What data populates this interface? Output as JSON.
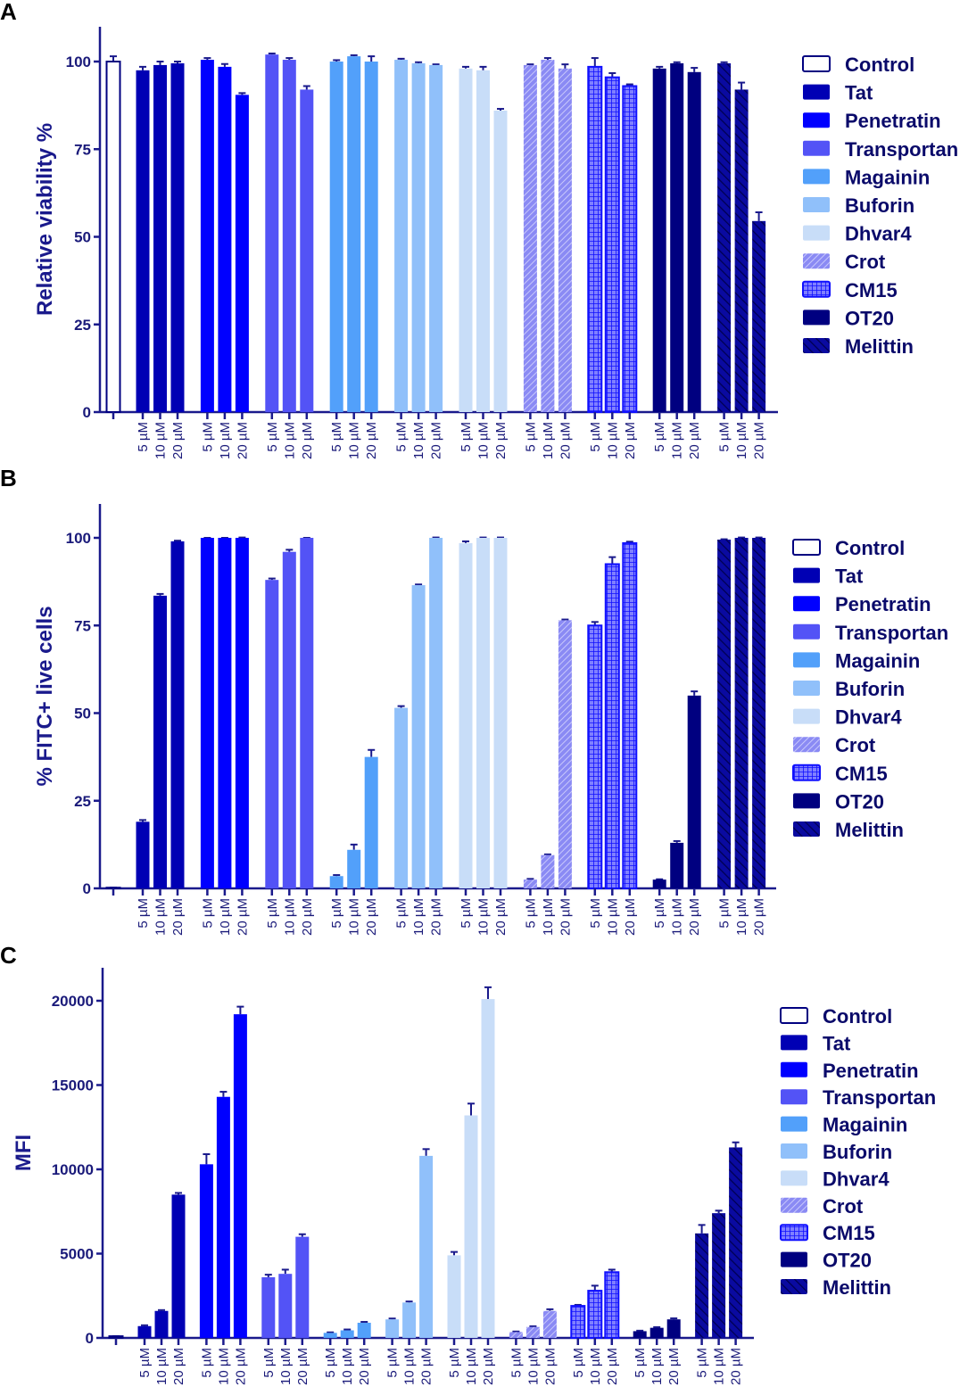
{
  "chart_data": [
    {
      "type": "bar",
      "panel_label": "A",
      "ylabel": "Relative viability %",
      "ylim": [
        0,
        110
      ],
      "yticks": [
        0,
        25,
        50,
        75,
        100
      ],
      "tick_labels": [
        "0",
        "25",
        "50",
        "75",
        "100"
      ],
      "concentrations": [
        "5 µM",
        "10 µM",
        "20 µM"
      ],
      "control": {
        "name": "Control",
        "value": 100,
        "error": 1.5
      },
      "series": [
        {
          "name": "Tat",
          "values": [
            97.5,
            99,
            99.5
          ],
          "errors": [
            1,
            1,
            0.5
          ]
        },
        {
          "name": "Penetratin",
          "values": [
            100.5,
            98.5,
            90.5
          ],
          "errors": [
            0.5,
            0.8,
            0.5
          ]
        },
        {
          "name": "Transportan",
          "values": [
            102,
            100.5,
            92
          ],
          "errors": [
            0.3,
            0.5,
            1
          ]
        },
        {
          "name": "Magainin",
          "values": [
            100,
            101.5,
            100
          ],
          "errors": [
            0.4,
            0.3,
            1.5
          ]
        },
        {
          "name": "Buforin",
          "values": [
            100.5,
            99.5,
            99
          ],
          "errors": [
            0.3,
            0.3,
            0.2
          ]
        },
        {
          "name": "Dhvar4",
          "values": [
            98,
            97.5,
            86
          ],
          "errors": [
            0.5,
            1,
            0.5
          ]
        },
        {
          "name": "Crot",
          "values": [
            99,
            100.5,
            98
          ],
          "errors": [
            0.2,
            0.5,
            1.2
          ]
        },
        {
          "name": "CM15",
          "values": [
            98.5,
            95.5,
            93
          ],
          "errors": [
            2.5,
            1.2,
            0.5
          ]
        },
        {
          "name": "OT20",
          "values": [
            98,
            99.5,
            97
          ],
          "errors": [
            0.5,
            0.3,
            1.2
          ]
        },
        {
          "name": "Melittin",
          "values": [
            99.5,
            92,
            54.5
          ],
          "errors": [
            0.3,
            2,
            2.5
          ]
        }
      ]
    },
    {
      "type": "bar",
      "panel_label": "B",
      "ylabel": "% FITC+ live cells",
      "ylim": [
        0,
        110
      ],
      "yticks": [
        0,
        25,
        50,
        75,
        100
      ],
      "tick_labels": [
        "0",
        "25",
        "50",
        "75",
        "100"
      ],
      "concentrations": [
        "5 µM",
        "10 µM",
        "20 µM"
      ],
      "control": {
        "name": "Control",
        "value": 0.2,
        "error": 0
      },
      "series": [
        {
          "name": "Tat",
          "values": [
            19,
            83.5,
            99
          ],
          "errors": [
            0.5,
            0.5,
            0.2
          ]
        },
        {
          "name": "Penetratin",
          "values": [
            100,
            100,
            100
          ],
          "errors": [
            0,
            0,
            0.1
          ]
        },
        {
          "name": "Transportan",
          "values": [
            88,
            96,
            100
          ],
          "errors": [
            0.4,
            0.6,
            0
          ]
        },
        {
          "name": "Magainin",
          "values": [
            3.5,
            11,
            37.5
          ],
          "errors": [
            0.3,
            1.5,
            2
          ]
        },
        {
          "name": "Buforin",
          "values": [
            51.5,
            86.5,
            100
          ],
          "errors": [
            0.5,
            0.2,
            0.1
          ]
        },
        {
          "name": "Dhvar4",
          "values": [
            98.5,
            100,
            100
          ],
          "errors": [
            0.5,
            0.1,
            0.1
          ]
        },
        {
          "name": "Crot",
          "values": [
            2.5,
            9.5,
            76.5
          ],
          "errors": [
            0.2,
            0.2,
            0.2
          ]
        },
        {
          "name": "CM15",
          "values": [
            75,
            92.5,
            98.5
          ],
          "errors": [
            1,
            2,
            0.4
          ]
        },
        {
          "name": "OT20",
          "values": [
            2.5,
            13,
            55
          ],
          "errors": [
            0.1,
            0.5,
            1.2
          ]
        },
        {
          "name": "Melittin",
          "values": [
            99.5,
            100,
            100
          ],
          "errors": [
            0.1,
            0.1,
            0.1
          ]
        }
      ]
    },
    {
      "type": "bar",
      "panel_label": "C",
      "ylabel": "MFI",
      "ylim": [
        0,
        22000
      ],
      "yticks": [
        0,
        5000,
        10000,
        15000,
        20000
      ],
      "tick_labels": [
        "0",
        "5000",
        "10000",
        "15000",
        "20000"
      ],
      "concentrations": [
        "5 µM",
        "10 µM",
        "20 µM"
      ],
      "control": {
        "name": "Control",
        "value": 100,
        "error": 0
      },
      "series": [
        {
          "name": "Tat",
          "values": [
            700,
            1600,
            8500
          ],
          "errors": [
            50,
            50,
            100
          ]
        },
        {
          "name": "Penetratin",
          "values": [
            10300,
            14300,
            19200
          ],
          "errors": [
            600,
            300,
            450
          ]
        },
        {
          "name": "Transportan",
          "values": [
            3600,
            3800,
            6000
          ],
          "errors": [
            150,
            250,
            150
          ]
        },
        {
          "name": "Magainin",
          "values": [
            300,
            450,
            900
          ],
          "errors": [
            30,
            50,
            50
          ]
        },
        {
          "name": "Buforin",
          "values": [
            1100,
            2100,
            10800
          ],
          "errors": [
            50,
            60,
            400
          ]
        },
        {
          "name": "Dhvar4",
          "values": [
            4900,
            13200,
            20100
          ],
          "errors": [
            200,
            700,
            700
          ]
        },
        {
          "name": "Crot",
          "values": [
            350,
            650,
            1600
          ],
          "errors": [
            30,
            40,
            100
          ]
        },
        {
          "name": "CM15",
          "values": [
            1900,
            2800,
            3900
          ],
          "errors": [
            60,
            300,
            150
          ]
        },
        {
          "name": "OT20",
          "values": [
            400,
            600,
            1100
          ],
          "errors": [
            30,
            40,
            60
          ]
        },
        {
          "name": "Melittin",
          "values": [
            6200,
            7400,
            11300
          ],
          "errors": [
            500,
            150,
            300
          ]
        }
      ]
    }
  ],
  "styles": {
    "axis_color": "#1a1a8c",
    "Control": {
      "fill": "#ffffff",
      "stroke": "#000080",
      "pattern": "none"
    },
    "Tat": {
      "fill": "#0000b4",
      "pattern": "none"
    },
    "Penetratin": {
      "fill": "#0000ff",
      "pattern": "none"
    },
    "Transportan": {
      "fill": "#5353f6",
      "pattern": "none"
    },
    "Magainin": {
      "fill": "#52a0fa",
      "pattern": "none"
    },
    "Buforin": {
      "fill": "#90c0fa",
      "pattern": "none"
    },
    "Dhvar4": {
      "fill": "#c8ddf8",
      "pattern": "none"
    },
    "Crot": {
      "fill": "#8a8af4",
      "pattern": "hatch"
    },
    "CM15": {
      "fill": "#2020ff",
      "pattern": "grid"
    },
    "OT20": {
      "fill": "#000080",
      "pattern": "none"
    },
    "Melittin": {
      "fill": "#0a0aa0",
      "pattern": "stripe"
    }
  }
}
